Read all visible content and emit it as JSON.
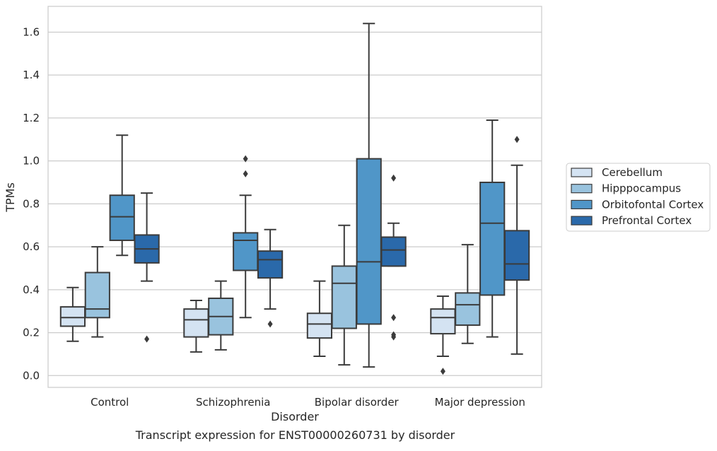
{
  "caption": "Transcript expression for ENST00000260731 by disorder",
  "chart_data": {
    "type": "boxplot",
    "xlabel": "Disorder",
    "ylabel": "TPMs",
    "ylim": [
      -0.055,
      1.72
    ],
    "yticks": [
      0.0,
      0.2,
      0.4,
      0.6,
      0.8,
      1.0,
      1.2,
      1.4,
      1.6
    ],
    "grid": true,
    "legend_position": "right",
    "categories": [
      "Control",
      "Schizophrenia",
      "Bipolar disorder",
      "Major depression"
    ],
    "series": [
      {
        "name": "Cerebellum",
        "color": "#d4e3f2",
        "boxes": [
          {
            "whisker_low": 0.16,
            "q1": 0.23,
            "median": 0.27,
            "q3": 0.32,
            "whisker_high": 0.41,
            "outliers": []
          },
          {
            "whisker_low": 0.11,
            "q1": 0.18,
            "median": 0.26,
            "q3": 0.31,
            "whisker_high": 0.35,
            "outliers": []
          },
          {
            "whisker_low": 0.09,
            "q1": 0.175,
            "median": 0.24,
            "q3": 0.29,
            "whisker_high": 0.44,
            "outliers": []
          },
          {
            "whisker_low": 0.09,
            "q1": 0.195,
            "median": 0.27,
            "q3": 0.31,
            "whisker_high": 0.37,
            "outliers": [
              0.02
            ]
          }
        ]
      },
      {
        "name": "Hipppocampus",
        "color": "#99c3de",
        "boxes": [
          {
            "whisker_low": 0.18,
            "q1": 0.27,
            "median": 0.31,
            "q3": 0.48,
            "whisker_high": 0.6,
            "outliers": []
          },
          {
            "whisker_low": 0.12,
            "q1": 0.19,
            "median": 0.275,
            "q3": 0.36,
            "whisker_high": 0.44,
            "outliers": []
          },
          {
            "whisker_low": 0.05,
            "q1": 0.22,
            "median": 0.43,
            "q3": 0.51,
            "whisker_high": 0.7,
            "outliers": []
          },
          {
            "whisker_low": 0.15,
            "q1": 0.235,
            "median": 0.33,
            "q3": 0.385,
            "whisker_high": 0.61,
            "outliers": []
          }
        ]
      },
      {
        "name": "Orbitofontal Cortex",
        "color": "#5096c8",
        "boxes": [
          {
            "whisker_low": 0.56,
            "q1": 0.63,
            "median": 0.74,
            "q3": 0.84,
            "whisker_high": 1.12,
            "outliers": []
          },
          {
            "whisker_low": 0.27,
            "q1": 0.49,
            "median": 0.63,
            "q3": 0.665,
            "whisker_high": 0.84,
            "outliers": [
              0.94,
              1.01
            ]
          },
          {
            "whisker_low": 0.04,
            "q1": 0.24,
            "median": 0.53,
            "q3": 1.01,
            "whisker_high": 1.64,
            "outliers": []
          },
          {
            "whisker_low": 0.18,
            "q1": 0.375,
            "median": 0.71,
            "q3": 0.9,
            "whisker_high": 1.19,
            "outliers": []
          }
        ]
      },
      {
        "name": "Prefrontal Cortex",
        "color": "#2a69aa",
        "boxes": [
          {
            "whisker_low": 0.44,
            "q1": 0.525,
            "median": 0.59,
            "q3": 0.655,
            "whisker_high": 0.85,
            "outliers": [
              0.17
            ]
          },
          {
            "whisker_low": 0.31,
            "q1": 0.455,
            "median": 0.54,
            "q3": 0.58,
            "whisker_high": 0.68,
            "outliers": [
              0.24
            ]
          },
          {
            "whisker_low": 0.51,
            "q1": 0.51,
            "median": 0.585,
            "q3": 0.645,
            "whisker_high": 0.71,
            "outliers": [
              0.92,
              0.27,
              0.19,
              0.18
            ]
          },
          {
            "whisker_low": 0.1,
            "q1": 0.445,
            "median": 0.52,
            "q3": 0.675,
            "whisker_high": 0.98,
            "outliers": [
              1.1
            ]
          }
        ]
      }
    ]
  }
}
